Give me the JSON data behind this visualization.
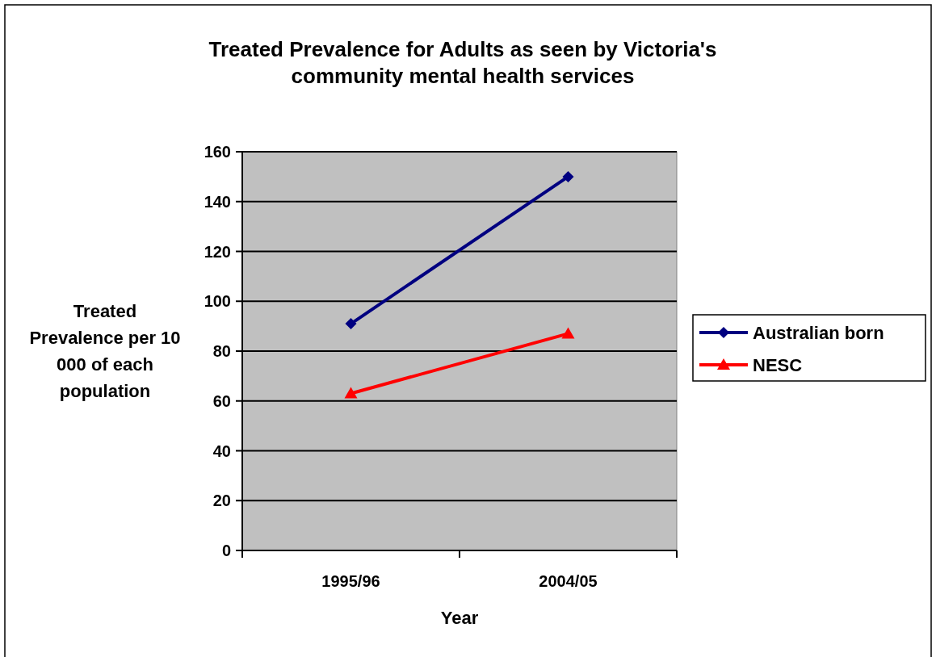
{
  "chart_data": {
    "type": "line",
    "title": "Treated Prevalence for Adults as seen by Victoria's community mental health services",
    "xlabel": "Year",
    "ylabel": "Treated Prevalence per 10 000 of each population",
    "categories": [
      "1995/96",
      "2004/05"
    ],
    "series": [
      {
        "name": "Australian born",
        "color": "#000080",
        "values": [
          91,
          150
        ],
        "marker": "diamond"
      },
      {
        "name": "NESC",
        "color": "#ff0000",
        "values": [
          63,
          87
        ],
        "marker": "triangle"
      }
    ],
    "ylim": [
      0,
      160
    ],
    "yticks": [
      0,
      20,
      40,
      60,
      80,
      100,
      120,
      140,
      160
    ],
    "grid": "y",
    "legend": "right",
    "line_style": "solid"
  }
}
